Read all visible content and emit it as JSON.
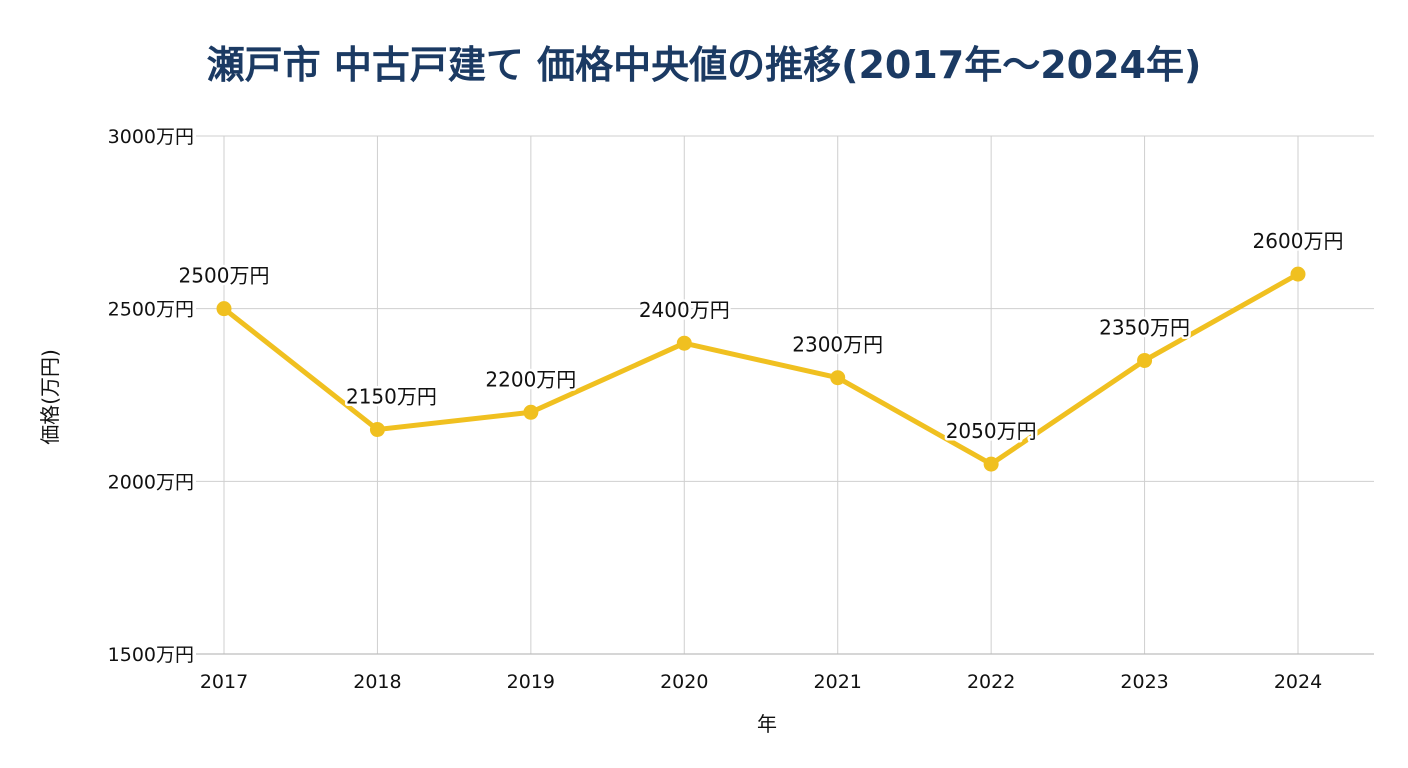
{
  "chart_data": {
    "type": "line",
    "title": "瀬戸市 中古戸建て 価格中央値の推移(2017年〜2024年)",
    "xlabel": "年",
    "ylabel": "価格(万円)",
    "categories": [
      "2017",
      "2018",
      "2019",
      "2020",
      "2021",
      "2022",
      "2023",
      "2024"
    ],
    "series": [
      {
        "values": [
          2500,
          2150,
          2200,
          2400,
          2300,
          2050,
          2350,
          2600
        ],
        "data_labels": [
          "2500万円",
          "2150万円",
          "2200万円",
          "2400万円",
          "2300万円",
          "2050万円",
          "2350万円",
          "2600万円"
        ],
        "color": "#f0c020"
      }
    ],
    "ylim": [
      1500,
      3000
    ],
    "yticks": [
      1500,
      2000,
      2500,
      3000
    ],
    "ytick_labels": [
      "1500万円",
      "2000万円",
      "2500万円",
      "3000万円"
    ],
    "grid": true,
    "legend": "none"
  }
}
